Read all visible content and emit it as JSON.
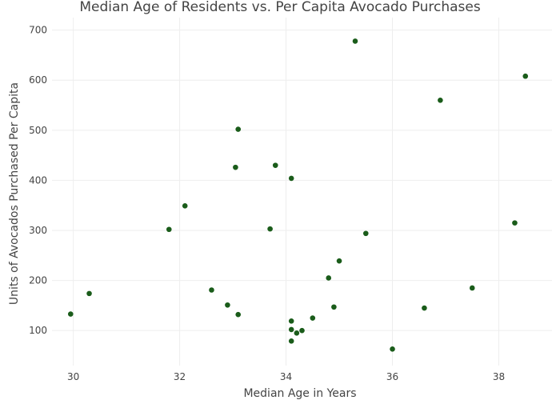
{
  "chart_data": {
    "type": "scatter",
    "title": "Median Age of Residents vs. Per Capita Avocado Purchases",
    "xlabel": "Median Age in Years",
    "ylabel": "Units of Avocados Purchased Per Capita",
    "xlim": [
      29.6,
      39.0
    ],
    "ylim": [
      30,
      725
    ],
    "xticks": [
      30,
      32,
      34,
      36,
      38
    ],
    "yticks": [
      100,
      200,
      300,
      400,
      500,
      600,
      700
    ],
    "grid": true,
    "marker_color": "#1a5c1a",
    "points": [
      {
        "x": 29.95,
        "y": 133
      },
      {
        "x": 30.3,
        "y": 174
      },
      {
        "x": 31.8,
        "y": 302
      },
      {
        "x": 32.1,
        "y": 349
      },
      {
        "x": 32.6,
        "y": 181
      },
      {
        "x": 32.9,
        "y": 151
      },
      {
        "x": 33.05,
        "y": 426
      },
      {
        "x": 33.1,
        "y": 502
      },
      {
        "x": 33.1,
        "y": 132
      },
      {
        "x": 33.7,
        "y": 303
      },
      {
        "x": 33.8,
        "y": 430
      },
      {
        "x": 34.1,
        "y": 404
      },
      {
        "x": 34.1,
        "y": 119
      },
      {
        "x": 34.1,
        "y": 102
      },
      {
        "x": 34.1,
        "y": 79
      },
      {
        "x": 34.2,
        "y": 95
      },
      {
        "x": 34.3,
        "y": 100
      },
      {
        "x": 34.5,
        "y": 125
      },
      {
        "x": 34.8,
        "y": 205
      },
      {
        "x": 34.9,
        "y": 147
      },
      {
        "x": 35.0,
        "y": 239
      },
      {
        "x": 35.3,
        "y": 678
      },
      {
        "x": 35.5,
        "y": 294
      },
      {
        "x": 36.0,
        "y": 63
      },
      {
        "x": 36.6,
        "y": 145
      },
      {
        "x": 36.9,
        "y": 560
      },
      {
        "x": 37.5,
        "y": 185
      },
      {
        "x": 38.3,
        "y": 315
      },
      {
        "x": 38.5,
        "y": 608
      }
    ]
  }
}
